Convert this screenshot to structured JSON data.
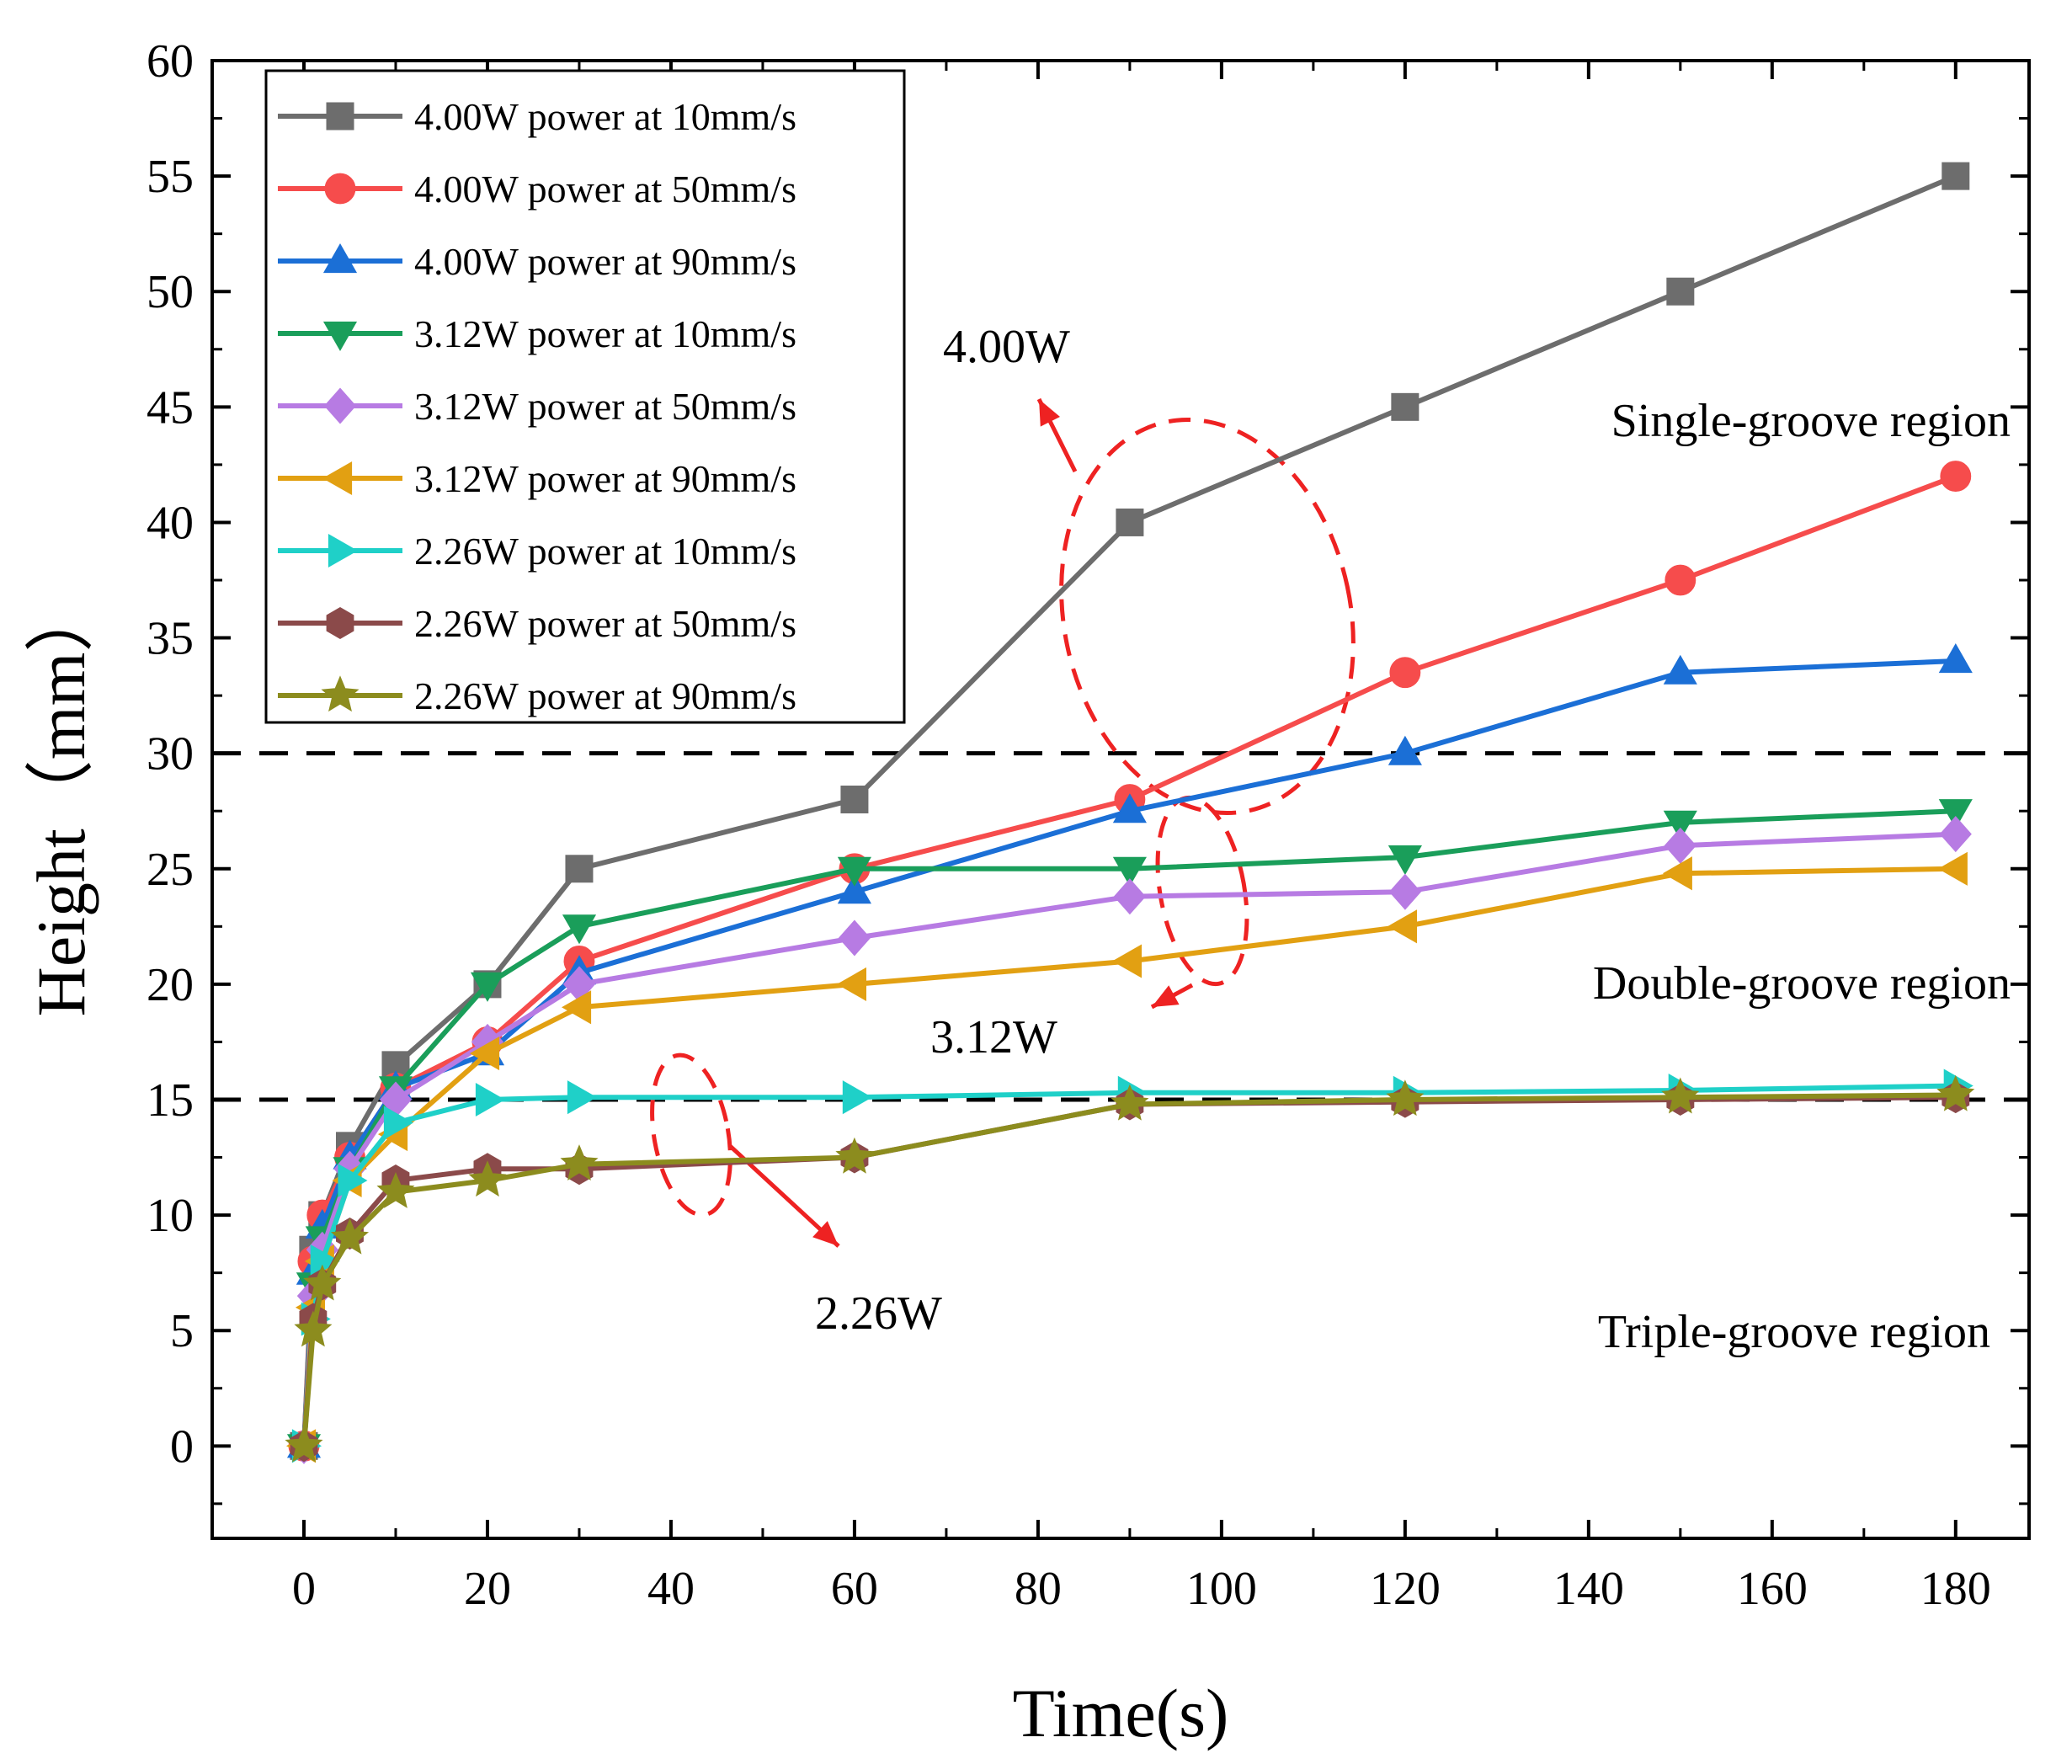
{
  "chart_data": {
    "type": "line",
    "title": "",
    "xlabel": "Time(s)",
    "ylabel": "Height（mm）",
    "xlim": [
      -10,
      188
    ],
    "ylim": [
      -4,
      60
    ],
    "xticks": [
      0,
      20,
      40,
      60,
      80,
      100,
      120,
      140,
      160,
      180
    ],
    "yticks": [
      0,
      5,
      10,
      15,
      20,
      25,
      30,
      35,
      40,
      45,
      50,
      55,
      60
    ],
    "grid": false,
    "legend_position": "top-left",
    "series": [
      {
        "name": "4.00W power at 10mm/s",
        "color": "#6d6d6d",
        "marker": "square",
        "x": [
          0,
          1,
          2,
          5,
          10,
          20,
          30,
          60,
          90,
          120,
          150,
          180
        ],
        "y": [
          0,
          8.5,
          10,
          13,
          16.5,
          20,
          25,
          28,
          40,
          45,
          50,
          55
        ]
      },
      {
        "name": "4.00W power at 50mm/s",
        "color": "#f64c4c",
        "marker": "circle",
        "x": [
          0,
          1,
          2,
          5,
          10,
          20,
          30,
          60,
          90,
          120,
          150,
          180
        ],
        "y": [
          0,
          8,
          10,
          12.5,
          15.5,
          17.5,
          21,
          25,
          28,
          33.5,
          37.5,
          42
        ]
      },
      {
        "name": "4.00W power at 90mm/s",
        "color": "#1b6fd6",
        "marker": "triangle-up",
        "x": [
          0,
          1,
          2,
          5,
          10,
          20,
          30,
          60,
          90,
          120,
          150,
          180
        ],
        "y": [
          0,
          7.5,
          9.5,
          12.5,
          15.5,
          17,
          20.5,
          24,
          27.5,
          30,
          33.5,
          34
        ]
      },
      {
        "name": "3.12W power at 10mm/s",
        "color": "#1a9e5a",
        "marker": "triangle-down",
        "x": [
          0,
          1,
          2,
          5,
          10,
          20,
          30,
          60,
          90,
          120,
          150,
          180
        ],
        "y": [
          0,
          7,
          9,
          12,
          15.5,
          20,
          22.5,
          25,
          25,
          25.5,
          27,
          27.5
        ]
      },
      {
        "name": "3.12W power at 50mm/s",
        "color": "#b77be3",
        "marker": "diamond",
        "x": [
          0,
          1,
          2,
          5,
          10,
          20,
          30,
          60,
          90,
          120,
          150,
          180
        ],
        "y": [
          0,
          6.5,
          8.5,
          12,
          15,
          17.5,
          20,
          22,
          23.8,
          24,
          26,
          26.5
        ]
      },
      {
        "name": "3.12W power at 90mm/s",
        "color": "#e2a012",
        "marker": "triangle-left",
        "x": [
          0,
          1,
          2,
          5,
          10,
          20,
          30,
          60,
          90,
          120,
          150,
          180
        ],
        "y": [
          0,
          6,
          8,
          11.5,
          13.5,
          17,
          19,
          20,
          21,
          22.5,
          24.8,
          25
        ]
      },
      {
        "name": "2.26W power at 10mm/s",
        "color": "#1fd0c8",
        "marker": "triangle-right",
        "x": [
          0,
          1,
          2,
          5,
          10,
          20,
          30,
          60,
          90,
          120,
          150,
          180
        ],
        "y": [
          0,
          5.5,
          8,
          11.5,
          14,
          15,
          15.1,
          15.1,
          15.3,
          15.3,
          15.4,
          15.6
        ]
      },
      {
        "name": "2.26W power at 50mm/s",
        "color": "#8b4a4a",
        "marker": "hexagon",
        "x": [
          0,
          1,
          2,
          5,
          10,
          20,
          30,
          60,
          90,
          120,
          150,
          180
        ],
        "y": [
          0,
          5.5,
          7,
          9.2,
          11.5,
          12,
          12,
          12.5,
          14.8,
          14.9,
          15,
          15.1
        ]
      },
      {
        "name": "2.26W power at 90mm/s",
        "color": "#8c8c1e",
        "marker": "star",
        "x": [
          0,
          1,
          2,
          5,
          10,
          20,
          30,
          60,
          90,
          120,
          150,
          180
        ],
        "y": [
          0,
          5,
          7,
          9,
          11,
          11.5,
          12.2,
          12.5,
          14.8,
          15,
          15.1,
          15.2
        ]
      }
    ],
    "reference_lines": [
      {
        "y": 30,
        "style": "dashed",
        "color": "#000000"
      },
      {
        "y": 15,
        "style": "dashed",
        "color": "#000000"
      }
    ],
    "annotations": {
      "group_4w": "4.00W",
      "group_312w": "3.12W",
      "group_226w": "2.26W",
      "region_single": "Single-groove region",
      "region_double": "Double-groove region",
      "region_triple": "Triple-groove region"
    },
    "annotation_color": "#ee2222"
  }
}
